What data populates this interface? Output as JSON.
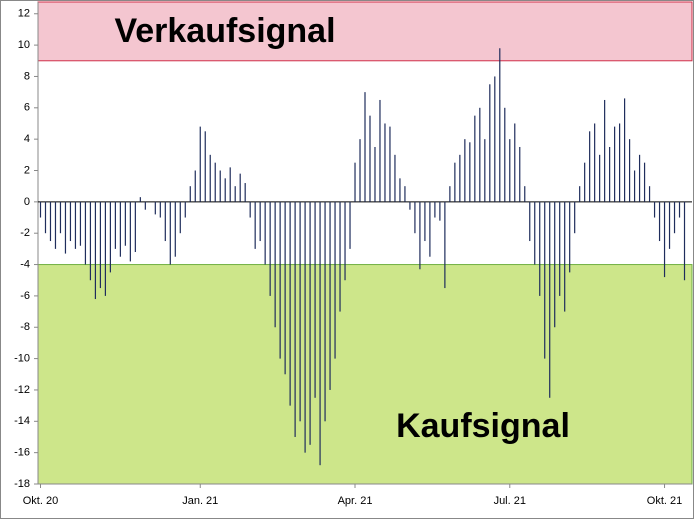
{
  "chart_data": {
    "type": "bar",
    "categories": [
      "Okt. 20",
      null,
      null,
      null,
      null,
      null,
      null,
      null,
      null,
      null,
      null,
      null,
      null,
      null,
      null,
      null,
      null,
      null,
      null,
      null,
      null,
      null,
      null,
      null,
      null,
      null,
      null,
      null,
      null,
      null,
      null,
      null,
      "Jan. 21",
      null,
      null,
      null,
      null,
      null,
      null,
      null,
      null,
      null,
      null,
      null,
      null,
      null,
      null,
      null,
      null,
      null,
      null,
      null,
      null,
      null,
      null,
      null,
      null,
      null,
      null,
      null,
      null,
      null,
      null,
      "Apr. 21",
      null,
      null,
      null,
      null,
      null,
      null,
      null,
      null,
      null,
      null,
      null,
      null,
      null,
      null,
      null,
      null,
      null,
      null,
      null,
      null,
      null,
      null,
      null,
      null,
      null,
      null,
      null,
      null,
      null,
      null,
      "Jul. 21",
      null,
      null,
      null,
      null,
      null,
      null,
      null,
      null,
      null,
      null,
      null,
      null,
      null,
      null,
      null,
      null,
      null,
      null,
      null,
      null,
      null,
      null,
      null,
      null,
      null,
      null,
      null,
      null,
      null,
      null,
      "Okt. 21",
      null,
      null,
      null,
      null,
      null
    ],
    "values": [
      -1,
      -2,
      -2.5,
      -3,
      -2,
      -3.3,
      -2.5,
      -3,
      -2.8,
      -4,
      -5,
      -6.2,
      -5.5,
      -6,
      -4.5,
      -3,
      -3.5,
      -2.8,
      -3.8,
      -3.2,
      0.3,
      -0.5,
      0,
      -0.8,
      -1,
      -2.5,
      -4,
      -3.5,
      -2,
      -1,
      1,
      2,
      4.8,
      4.5,
      3,
      2.5,
      2,
      1.5,
      2.2,
      1,
      1.8,
      1.2,
      -1,
      -3,
      -2.5,
      -4,
      -6,
      -8,
      -10,
      -11,
      -13,
      -15,
      -14,
      -16,
      -15.5,
      -12.5,
      -16.8,
      -14,
      -12,
      -10,
      -7,
      -5,
      -3,
      2.5,
      4,
      7,
      5.5,
      3.5,
      6.5,
      5,
      4.8,
      3,
      1.5,
      1,
      -0.5,
      -2,
      -4.3,
      -2.5,
      -3.5,
      -1,
      -1.2,
      -5.5,
      1,
      2.5,
      3,
      4,
      3.8,
      5.5,
      6,
      4,
      7.5,
      8,
      9.8,
      6,
      4,
      5,
      3.5,
      1,
      -2.5,
      -4,
      -6,
      -10,
      -12.5,
      -8,
      -6,
      -7,
      -4.5,
      -2,
      1,
      2.5,
      4.5,
      5,
      3,
      6.5,
      3.5,
      4.8,
      5,
      6.6,
      4,
      2,
      3,
      2.5,
      1,
      -1,
      -2.5,
      -4.8,
      -3,
      -2,
      -1,
      -5,
      0
    ],
    "color": "#1f2d5c",
    "ylim": [
      -18,
      12.75
    ],
    "yticks": [
      -18,
      -16,
      -14,
      -12,
      -10,
      -8,
      -6,
      -4,
      -2,
      0,
      2,
      4,
      6,
      8,
      10,
      12
    ],
    "zones": [
      {
        "label": "Verkaufsignal",
        "from": 9,
        "to": 12.75,
        "color": "#f4c6d0",
        "edge": "#d0304a"
      },
      {
        "label": "Kaufsignal",
        "from": -18,
        "to": -4,
        "color": "#cde68a",
        "edge": "#70b040"
      }
    ]
  }
}
